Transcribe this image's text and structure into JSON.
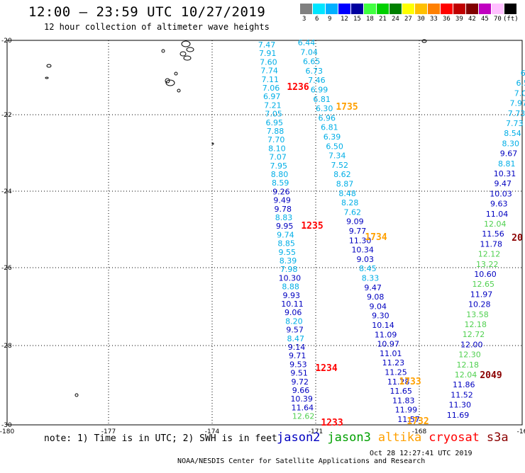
{
  "header": {
    "title": "12:00 — 23:59 UTC 10/27/2019",
    "subtitle": "12 hour collection of altimeter wave heights"
  },
  "legend": {
    "colors": [
      "#808080",
      "#00e5ff",
      "#00b0ff",
      "#0000ff",
      "#0000a0",
      "#40ff40",
      "#00d000",
      "#008000",
      "#ffff00",
      "#ffc000",
      "#ff8000",
      "#ff0000",
      "#c00000",
      "#800000",
      "#c000c0",
      "#ffc0ff",
      "#000000"
    ],
    "labels": [
      "3",
      "6",
      "9",
      "12",
      "15",
      "18",
      "21",
      "24",
      "27",
      "30",
      "33",
      "36",
      "39",
      "42",
      "45",
      "70",
      "(ft)"
    ]
  },
  "footer": {
    "note": "note: 1) Time is in UTC; 2) SWH is in feet",
    "credit": "NOAA/NESDIS Center for Satellite Applications and Research",
    "timestamp": "Oct 28 12:27:41 UTC 2019"
  },
  "satellites": [
    {
      "name": "jason2",
      "color": "#0000c0"
    },
    {
      "name": "jason3",
      "color": "#00a000"
    },
    {
      "name": "altika",
      "color": "#ffa000"
    },
    {
      "name": "cryosat",
      "color": "#ff0000"
    },
    {
      "name": "s3a",
      "color": "#8b0000"
    }
  ],
  "map": {
    "lon_ticks": [
      "-180",
      "-177",
      "-174",
      "-171",
      "-168",
      "-16"
    ],
    "lat_ticks": [
      "-20",
      "-22",
      "-24",
      "-26",
      "-28",
      "-30"
    ],
    "colors": {
      "light": "#00aee6",
      "dark": "#0000c0",
      "green": "#50d050",
      "time_jason": "#ff0000",
      "time_altika": "#ffa000",
      "time_s3a": "#8b0000"
    },
    "track_a": [
      "7.47",
      "7.91",
      "7.60",
      "7.74",
      "7.11",
      "7.06",
      "6.97",
      "7.21",
      "7.05",
      "6.95",
      "7.88",
      "7.70",
      "8.10",
      "7.07",
      "7.95",
      "8.80",
      "8.59",
      "9.26",
      "9.49",
      "9.78",
      "8.83",
      "9.95",
      "9.74",
      "8.85",
      "9.55",
      "8.39",
      "7.98",
      "10.30",
      "8.88",
      "9.93",
      "10.11",
      "9.06",
      "8.20",
      "9.57",
      "8.47",
      "9.14",
      "9.71",
      "9.53",
      "9.51",
      "9.72",
      "9.66",
      "10.39",
      "11.64",
      "12.62"
    ],
    "track_a_colors": [
      "L",
      "L",
      "L",
      "L",
      "L",
      "L",
      "L",
      "L",
      "L",
      "L",
      "L",
      "L",
      "L",
      "L",
      "L",
      "L",
      "L",
      "D",
      "D",
      "D",
      "L",
      "D",
      "L",
      "L",
      "L",
      "L",
      "L",
      "D",
      "L",
      "D",
      "D",
      "D",
      "L",
      "D",
      "L",
      "D",
      "D",
      "D",
      "D",
      "D",
      "D",
      "D",
      "D",
      "G"
    ],
    "track_b": [
      "6.44",
      "7.04",
      "6.65",
      "6.73",
      "7.46",
      "6.99",
      "6.81",
      "6.30",
      "6.96",
      "6.81",
      "6.39",
      "6.50",
      "7.34",
      "7.52",
      "8.62",
      "8.87",
      "8.48",
      "8.28",
      "7.62",
      "9.09",
      "9.77",
      "11.30",
      "10.34",
      "9.03",
      "8.45",
      "8.33",
      "9.47",
      "9.08",
      "9.04",
      "9.30",
      "10.14",
      "11.09",
      "10.97",
      "11.01",
      "11.23",
      "11.25",
      "11.28",
      "11.65",
      "11.83",
      "11.99",
      "11.57"
    ],
    "track_b_colors": [
      "L",
      "L",
      "L",
      "L",
      "L",
      "L",
      "L",
      "L",
      "L",
      "L",
      "L",
      "L",
      "L",
      "L",
      "L",
      "L",
      "L",
      "L",
      "L",
      "D",
      "D",
      "D",
      "D",
      "D",
      "L",
      "L",
      "D",
      "D",
      "D",
      "D",
      "D",
      "D",
      "D",
      "D",
      "D",
      "D",
      "D",
      "D",
      "D",
      "D",
      "D"
    ],
    "track_c": [
      "6.",
      "6.5",
      "7.0",
      "7.97",
      "7.73",
      "7.73",
      "8.54",
      "8.30",
      "9.67",
      "8.81",
      "10.31",
      "9.47",
      "10.03",
      "9.63",
      "11.04",
      "12.04",
      "11.56",
      "11.78",
      "12.12",
      "13.22",
      "10.60",
      "12.65",
      "11.97",
      "10.28",
      "13.58",
      "12.18",
      "12.72",
      "12.00",
      "12.30",
      "12.18",
      "12.04",
      "11.86",
      "11.52",
      "11.30",
      "11.69"
    ],
    "track_c_colors": [
      "L",
      "L",
      "L",
      "L",
      "L",
      "L",
      "L",
      "L",
      "D",
      "L",
      "D",
      "D",
      "D",
      "D",
      "D",
      "G",
      "D",
      "D",
      "G",
      "G",
      "D",
      "G",
      "D",
      "D",
      "G",
      "G",
      "G",
      "D",
      "G",
      "G",
      "G",
      "D",
      "D",
      "D",
      "D"
    ],
    "time_labels": [
      {
        "text": "1236",
        "kind": "time_jason"
      },
      {
        "text": "1735",
        "kind": "time_altika"
      },
      {
        "text": "1235",
        "kind": "time_jason"
      },
      {
        "text": "1734",
        "kind": "time_altika"
      },
      {
        "text": "1234",
        "kind": "time_jason"
      },
      {
        "text": "1733",
        "kind": "time_altika"
      },
      {
        "text": "1233",
        "kind": "time_jason"
      },
      {
        "text": "1732",
        "kind": "time_altika"
      },
      {
        "text": "2049",
        "kind": "time_s3a"
      },
      {
        "text": "20",
        "kind": "time_s3a"
      }
    ]
  }
}
